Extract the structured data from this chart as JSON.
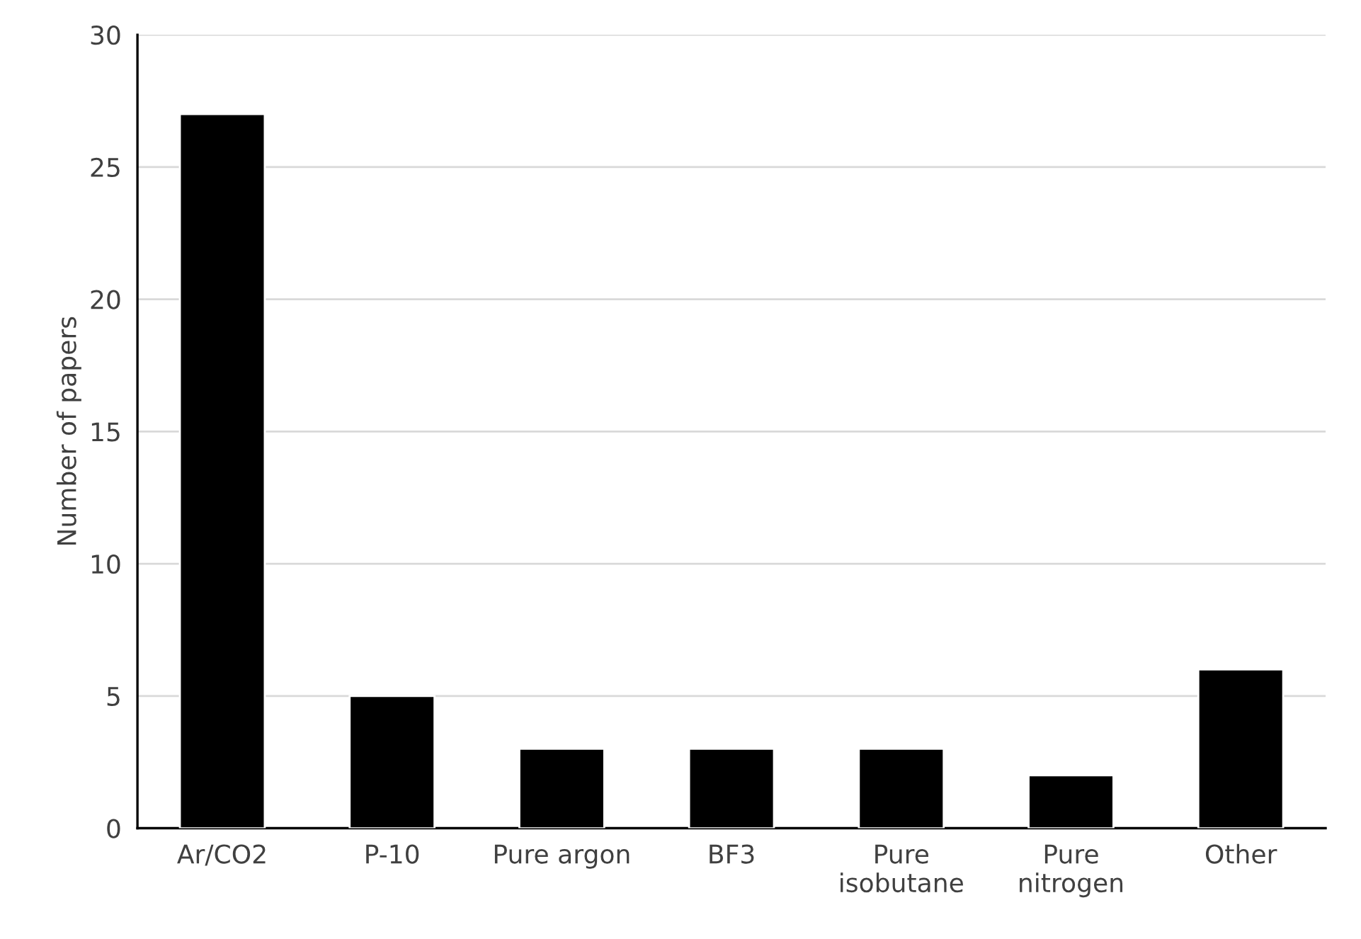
{
  "chart_data": {
    "type": "bar",
    "ylabel": "Number of papers",
    "categories": [
      "Ar/CO2",
      "P-10",
      "Pure argon",
      "BF3",
      "Pure\nisobutane",
      "Pure\nnitrogen",
      "Other"
    ],
    "values": [
      27,
      5,
      3,
      3,
      3,
      2,
      6
    ],
    "color": "#000000",
    "ylim": [
      0,
      30
    ],
    "yticks": [
      0,
      5,
      10,
      15,
      20,
      25,
      30
    ],
    "grid": "y"
  }
}
